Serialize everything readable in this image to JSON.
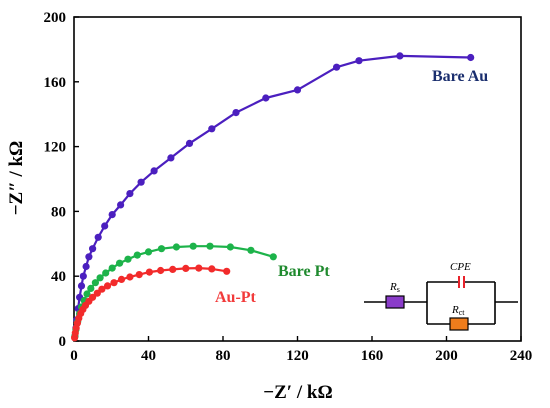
{
  "chart_data": {
    "type": "scatter",
    "xlabel": "−Z′ / kΩ",
    "ylabel": "−Z″ / kΩ",
    "xlim": [
      0,
      240
    ],
    "ylim": [
      0,
      200
    ],
    "x_ticks": [
      0,
      40,
      80,
      120,
      160,
      200,
      240
    ],
    "y_ticks": [
      0,
      40,
      80,
      120,
      160,
      200
    ],
    "grid": false,
    "series": [
      {
        "name": "Bare Au",
        "color": "#4B1FBF",
        "label_color": "#1A2E6E",
        "x": [
          0.5,
          1,
          1.5,
          2.2,
          3,
          4,
          5,
          6.5,
          8,
          10,
          13,
          16.5,
          20.5,
          25,
          30,
          36,
          43,
          52,
          62,
          74,
          87,
          103,
          120,
          141,
          153,
          175,
          213
        ],
        "y": [
          3,
          8,
          13,
          20,
          27,
          34,
          40,
          46,
          52,
          57,
          64,
          71,
          78,
          84,
          91,
          98,
          105,
          113,
          122,
          131,
          141,
          150,
          155,
          169,
          173,
          176,
          175
        ]
      },
      {
        "name": "Bare Pt",
        "color": "#1DB34A",
        "label_color": "#1F8A2E",
        "x": [
          0.5,
          1,
          2,
          3,
          4,
          5.5,
          7,
          9,
          11.5,
          14,
          17,
          20.5,
          24.5,
          29,
          34,
          40,
          47,
          55,
          64,
          73,
          84,
          95,
          107
        ],
        "y": [
          3,
          7,
          12,
          17,
          21,
          25,
          29,
          32.5,
          36,
          39,
          42,
          45,
          48,
          50.5,
          53,
          55,
          57,
          58,
          58.5,
          58.5,
          58,
          56,
          52
        ]
      },
      {
        "name": "Au-Pt",
        "color": "#F22B2B",
        "label_color": "#F23A3A",
        "x": [
          0.3,
          0.7,
          1.2,
          1.8,
          2.6,
          3.6,
          4.8,
          6.2,
          8,
          10,
          12.5,
          15,
          18,
          21.5,
          25.5,
          30,
          35,
          40.5,
          46.5,
          53,
          60,
          67,
          74,
          82
        ],
        "y": [
          2,
          5,
          8,
          11,
          14,
          17,
          19.5,
          22,
          24.5,
          27,
          29.5,
          32,
          34,
          36,
          38,
          39.5,
          41,
          42.5,
          43.5,
          44.2,
          44.8,
          45,
          44.5,
          43
        ]
      }
    ],
    "inset": {
      "type": "equivalent-circuit",
      "components": [
        "R_s",
        "CPE",
        "R_ct"
      ],
      "labels": {
        "rs_main": "R",
        "rs_sub": "s",
        "cpe": "CPE",
        "rct_main": "R",
        "rct_sub": "ct"
      },
      "colors": {
        "rs": "#8A3CC9",
        "cpe": "#E8222B",
        "rct": "#EF7D1C"
      }
    }
  }
}
